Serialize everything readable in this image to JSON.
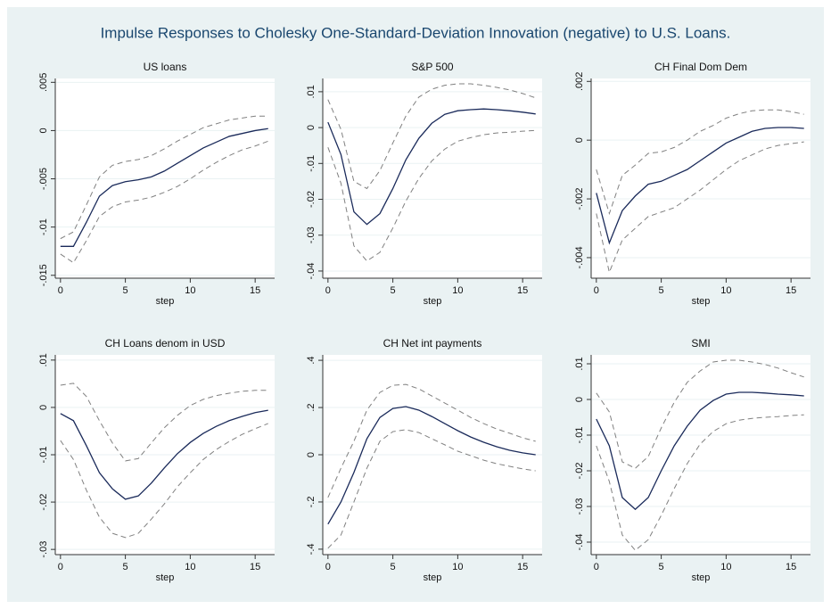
{
  "title": "Impulse Responses to Cholesky One-Standard-Deviation Innovation (negative) to U.S. Loans.",
  "chart_data": [
    {
      "type": "line",
      "title": "US loans",
      "xlabel": "step",
      "x": [
        0,
        1,
        2,
        3,
        4,
        5,
        6,
        7,
        8,
        9,
        10,
        11,
        12,
        13,
        14,
        15,
        16
      ],
      "xlim": [
        -0.4,
        16.5
      ],
      "xticks": [
        0,
        5,
        10,
        15
      ],
      "ylim": [
        -0.0153,
        0.0054
      ],
      "yticks": [
        {
          "value": 0.005,
          "label": ".005"
        },
        0,
        {
          "value": -0.005,
          "label": "-.005"
        },
        {
          "value": -0.01,
          "label": "-.01"
        },
        {
          "value": -0.015,
          "label": "-.015"
        }
      ],
      "grid": true,
      "series": [
        {
          "color": "#1a2a5a",
          "style": "solid",
          "values": [
            -0.012,
            -0.012,
            -0.0095,
            -0.0068,
            -0.0057,
            -0.0053,
            -0.0051,
            -0.0048,
            -0.0042,
            -0.0034,
            -0.0026,
            -0.0018,
            -0.0012,
            -0.0006,
            -0.0003,
            0,
            0.0002
          ]
        },
        {
          "color": "#808080",
          "style": "dashed",
          "values": [
            -0.0112,
            -0.0105,
            -0.0077,
            -0.0048,
            -0.0036,
            -0.0032,
            -0.003,
            -0.0026,
            -0.0019,
            -0.0011,
            -0.0004,
            0.0003,
            0.0007,
            0.0011,
            0.0013,
            0.0015,
            0.0015
          ]
        },
        {
          "color": "#808080",
          "style": "dashed",
          "values": [
            -0.0128,
            -0.0137,
            -0.0114,
            -0.0089,
            -0.0079,
            -0.0074,
            -0.0072,
            -0.0069,
            -0.0064,
            -0.0058,
            -0.005,
            -0.0041,
            -0.0033,
            -0.0026,
            -0.002,
            -0.0016,
            -0.0011
          ]
        }
      ]
    },
    {
      "type": "line",
      "title": "S&P 500",
      "xlabel": "step",
      "x": [
        0,
        1,
        2,
        3,
        4,
        5,
        6,
        7,
        8,
        9,
        10,
        11,
        12,
        13,
        14,
        15,
        16
      ],
      "xlim": [
        -0.4,
        16.5
      ],
      "xticks": [
        0,
        5,
        10,
        15
      ],
      "ylim": [
        -0.042,
        0.0137
      ],
      "yticks": [
        {
          "value": 0.01,
          "label": ".01"
        },
        0,
        {
          "value": -0.01,
          "label": "-.01"
        },
        {
          "value": -0.02,
          "label": "-.02"
        },
        {
          "value": -0.03,
          "label": "-.03"
        },
        {
          "value": -0.04,
          "label": "-.04"
        }
      ],
      "grid": true,
      "series": [
        {
          "color": "#1a2a5a",
          "style": "solid",
          "values": [
            0.0015,
            -0.0075,
            -0.0235,
            -0.027,
            -0.024,
            -0.017,
            -0.009,
            -0.003,
            0.0012,
            0.0037,
            0.0047,
            0.005,
            0.0052,
            0.005,
            0.0047,
            0.0043,
            0.0038
          ]
        },
        {
          "color": "#808080",
          "style": "dashed",
          "values": [
            0.0078,
            -0.0005,
            -0.015,
            -0.017,
            -0.012,
            -0.0043,
            0.0032,
            0.0085,
            0.0107,
            0.0118,
            0.0122,
            0.0122,
            0.0118,
            0.0112,
            0.0105,
            0.0095,
            0.0083
          ]
        },
        {
          "color": "#808080",
          "style": "dashed",
          "values": [
            -0.0055,
            -0.0155,
            -0.033,
            -0.0372,
            -0.0348,
            -0.028,
            -0.0205,
            -0.0142,
            -0.0093,
            -0.006,
            -0.0038,
            -0.0028,
            -0.002,
            -0.0015,
            -0.0013,
            -0.001,
            -0.0008
          ]
        }
      ]
    },
    {
      "type": "line",
      "title": "CH Final Dom Dem",
      "xlabel": "step",
      "x": [
        0,
        1,
        2,
        3,
        4,
        5,
        6,
        7,
        8,
        9,
        10,
        11,
        12,
        13,
        14,
        15,
        16
      ],
      "xlim": [
        -0.4,
        16.5
      ],
      "xticks": [
        0,
        5,
        10,
        15
      ],
      "ylim": [
        -0.0047,
        0.0021
      ],
      "yticks": [
        {
          "value": 0.002,
          "label": ".002"
        },
        0,
        {
          "value": -0.002,
          "label": "-.002"
        },
        {
          "value": -0.004,
          "label": "-.004"
        }
      ],
      "grid": true,
      "series": [
        {
          "color": "#1a2a5a",
          "style": "solid",
          "values": [
            -0.0018,
            -0.0035,
            -0.0024,
            -0.0019,
            -0.0015,
            -0.0014,
            -0.0012,
            -0.001,
            -0.0007,
            -0.0004,
            -0.0001,
            0.0001,
            0.0003,
            0.0004,
            0.00043,
            0.00043,
            0.0004
          ]
        },
        {
          "color": "#808080",
          "style": "dashed",
          "values": [
            -0.001,
            -0.0025,
            -0.0012,
            -0.00085,
            -0.00045,
            -0.0004,
            -0.00025,
            0,
            0.0003,
            0.0005,
            0.00075,
            0.0009,
            0.001,
            0.00103,
            0.00103,
            0.00097,
            0.00088
          ]
        },
        {
          "color": "#808080",
          "style": "dashed",
          "values": [
            -0.0025,
            -0.0045,
            -0.0034,
            -0.003,
            -0.0026,
            -0.00245,
            -0.0023,
            -0.002,
            -0.0017,
            -0.00135,
            -0.001,
            -0.0007,
            -0.0005,
            -0.0003,
            -0.00018,
            -0.00012,
            -6e-05
          ]
        }
      ]
    },
    {
      "type": "line",
      "title": "CH Loans denom in USD",
      "xlabel": "step",
      "x": [
        0,
        1,
        2,
        3,
        4,
        5,
        6,
        7,
        8,
        9,
        10,
        11,
        12,
        13,
        14,
        15,
        16
      ],
      "xlim": [
        -0.4,
        16.5
      ],
      "xticks": [
        0,
        5,
        10,
        15
      ],
      "ylim": [
        -0.0311,
        0.0111
      ],
      "yticks": [
        {
          "value": 0.01,
          "label": ".01"
        },
        0,
        {
          "value": -0.01,
          "label": "-.01"
        },
        {
          "value": -0.02,
          "label": "-.02"
        },
        {
          "value": -0.03,
          "label": "-.03"
        }
      ],
      "grid": true,
      "series": [
        {
          "color": "#1a2a5a",
          "style": "solid",
          "values": [
            -0.0013,
            -0.0028,
            -0.0081,
            -0.0138,
            -0.0172,
            -0.0194,
            -0.0187,
            -0.016,
            -0.0128,
            -0.0098,
            -0.0074,
            -0.0055,
            -0.004,
            -0.0028,
            -0.0019,
            -0.0011,
            -0.0006
          ]
        },
        {
          "color": "#808080",
          "style": "dashed",
          "values": [
            0.0047,
            0.0051,
            0.0023,
            -0.0028,
            -0.0075,
            -0.0113,
            -0.0108,
            -0.0075,
            -0.0043,
            -0.0017,
            0.0004,
            0.0017,
            0.0025,
            0.003,
            0.0034,
            0.0036,
            0.0036
          ]
        },
        {
          "color": "#808080",
          "style": "dashed",
          "values": [
            -0.007,
            -0.011,
            -0.0175,
            -0.0232,
            -0.0266,
            -0.0275,
            -0.0266,
            -0.0236,
            -0.0204,
            -0.0168,
            -0.0138,
            -0.011,
            -0.0089,
            -0.0072,
            -0.0057,
            -0.0045,
            -0.0034
          ]
        }
      ]
    },
    {
      "type": "line",
      "title": "CH Net int payments",
      "xlabel": "step",
      "x": [
        0,
        1,
        2,
        3,
        4,
        5,
        6,
        7,
        8,
        9,
        10,
        11,
        12,
        13,
        14,
        15,
        16
      ],
      "xlim": [
        -0.4,
        16.5
      ],
      "xticks": [
        0,
        5,
        10,
        15
      ],
      "ylim": [
        -0.423,
        0.423
      ],
      "yticks": [
        {
          "value": 0.4,
          "label": ".4"
        },
        {
          "value": 0.2,
          "label": ".2"
        },
        0,
        {
          "value": -0.2,
          "label": "-.2"
        },
        {
          "value": -0.4,
          "label": "-.4"
        }
      ],
      "grid": true,
      "series": [
        {
          "color": "#1a2a5a",
          "style": "solid",
          "values": [
            -0.294,
            -0.2,
            -0.075,
            0.068,
            0.158,
            0.196,
            0.204,
            0.189,
            0.162,
            0.132,
            0.102,
            0.075,
            0.053,
            0.034,
            0.019,
            0.008,
            0
          ]
        },
        {
          "color": "#808080",
          "style": "dashed",
          "values": [
            -0.181,
            -0.057,
            0.057,
            0.189,
            0.264,
            0.294,
            0.298,
            0.279,
            0.249,
            0.219,
            0.189,
            0.158,
            0.132,
            0.109,
            0.091,
            0.072,
            0.057
          ]
        },
        {
          "color": "#808080",
          "style": "dashed",
          "values": [
            -0.396,
            -0.34,
            -0.2,
            -0.057,
            0.057,
            0.098,
            0.106,
            0.094,
            0.068,
            0.042,
            0.015,
            -0.004,
            -0.023,
            -0.038,
            -0.049,
            -0.06,
            -0.068
          ]
        }
      ]
    },
    {
      "type": "line",
      "title": "SMI",
      "xlabel": "step",
      "x": [
        0,
        1,
        2,
        3,
        4,
        5,
        6,
        7,
        8,
        9,
        10,
        11,
        12,
        13,
        14,
        15,
        16
      ],
      "xlim": [
        -0.4,
        16.5
      ],
      "xticks": [
        0,
        5,
        10,
        15
      ],
      "ylim": [
        -0.0435,
        0.0125
      ],
      "yticks": [
        {
          "value": 0.01,
          "label": ".01"
        },
        0,
        {
          "value": -0.01,
          "label": "-.01"
        },
        {
          "value": -0.02,
          "label": "-.02"
        },
        {
          "value": -0.03,
          "label": "-.03"
        },
        {
          "value": -0.04,
          "label": "-.04"
        }
      ],
      "grid": true,
      "series": [
        {
          "color": "#1a2a5a",
          "style": "solid",
          "values": [
            -0.0055,
            -0.013,
            -0.0275,
            -0.0308,
            -0.0275,
            -0.02,
            -0.013,
            -0.0075,
            -0.003,
            -0.0003,
            0.0015,
            0.002,
            0.002,
            0.0018,
            0.0015,
            0.0013,
            0.001
          ]
        },
        {
          "color": "#808080",
          "style": "dashed",
          "values": [
            0.0018,
            -0.0035,
            -0.0175,
            -0.0193,
            -0.016,
            -0.008,
            -0.0008,
            0.0048,
            0.008,
            0.0105,
            0.011,
            0.011,
            0.0105,
            0.0098,
            0.0088,
            0.0075,
            0.0063
          ]
        },
        {
          "color": "#808080",
          "style": "dashed",
          "values": [
            -0.013,
            -0.023,
            -0.038,
            -0.0423,
            -0.0393,
            -0.0325,
            -0.025,
            -0.018,
            -0.0125,
            -0.009,
            -0.0068,
            -0.0058,
            -0.0053,
            -0.005,
            -0.0048,
            -0.0045,
            -0.0043
          ]
        }
      ]
    }
  ]
}
